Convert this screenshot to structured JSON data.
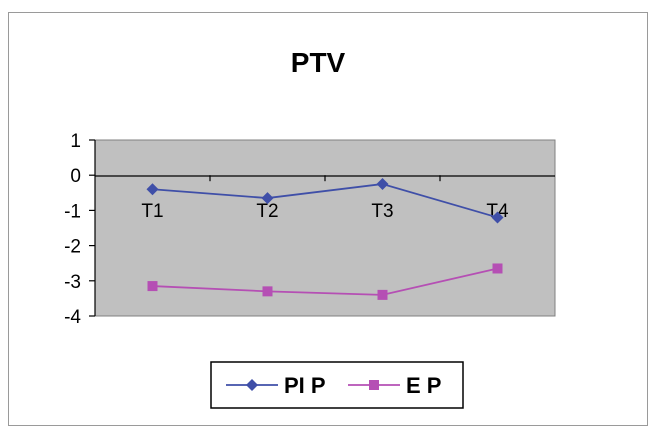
{
  "chart_data": {
    "type": "line",
    "title": "PTV",
    "categories": [
      "T1",
      "T2",
      "T3",
      "T4"
    ],
    "series": [
      {
        "name": "PI P",
        "values": [
          -0.4,
          -0.65,
          -0.25,
          -1.2
        ],
        "color": "#3f4fa8",
        "marker": "diamond"
      },
      {
        "name": "E P",
        "values": [
          -3.15,
          -3.3,
          -3.4,
          -2.65
        ],
        "color": "#b54fb4",
        "marker": "square"
      }
    ],
    "yticks": [
      "1",
      "0",
      "-1",
      "-2",
      "-3",
      "-4"
    ],
    "ylim": [
      -4,
      1
    ],
    "plot_background": "#c0c0c0",
    "legend": "bottom-center",
    "grid": false
  }
}
